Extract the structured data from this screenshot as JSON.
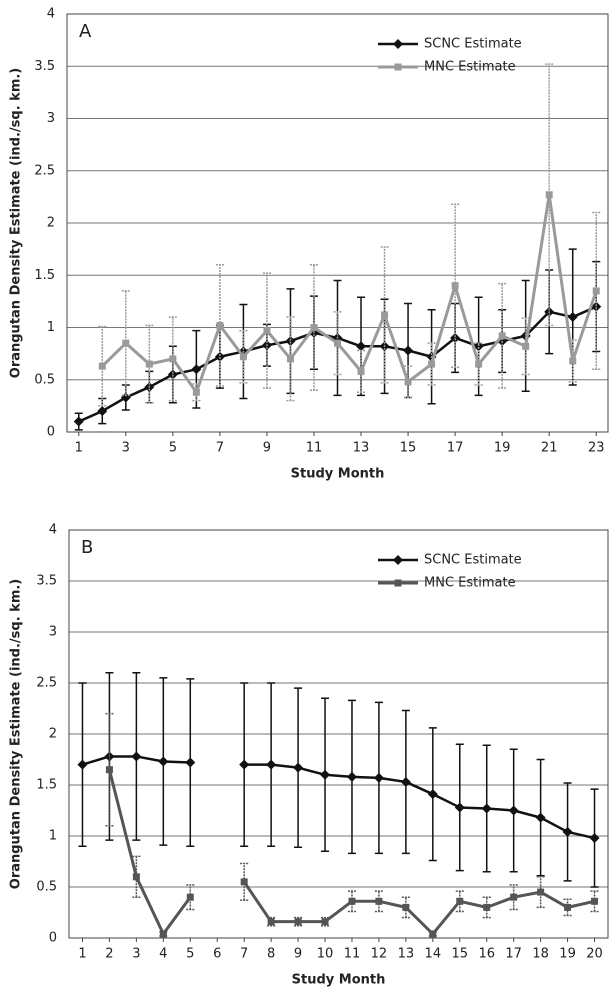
{
  "chart_data": [
    {
      "type": "line",
      "panel_label": "A",
      "xlabel": "Study Month",
      "ylabel": "Orangutan Density Estimate (ind./sq. km.)",
      "x": [
        1,
        2,
        3,
        4,
        5,
        6,
        7,
        8,
        9,
        10,
        11,
        12,
        13,
        14,
        15,
        16,
        17,
        18,
        19,
        20,
        21,
        22,
        23
      ],
      "xlim": [
        0.5,
        23.5
      ],
      "xticks": [
        1,
        3,
        5,
        7,
        9,
        11,
        13,
        15,
        17,
        19,
        21,
        23
      ],
      "ylim": [
        0,
        4
      ],
      "yticks": [
        0,
        0.5,
        1,
        1.5,
        2,
        2.5,
        3,
        3.5,
        4
      ],
      "grid": true,
      "legend": "upper right",
      "series": [
        {
          "name": "SCNC Estimate",
          "color": "#111111",
          "marker": "diamond",
          "values": [
            0.1,
            0.2,
            0.33,
            0.43,
            0.55,
            0.6,
            0.72,
            0.77,
            0.83,
            0.87,
            0.95,
            0.9,
            0.82,
            0.82,
            0.78,
            0.72,
            0.9,
            0.82,
            0.87,
            0.92,
            1.15,
            1.1,
            1.2
          ],
          "errors": [
            0.08,
            0.12,
            0.12,
            0.15,
            0.27,
            0.37,
            0.3,
            0.45,
            0.2,
            0.5,
            0.35,
            0.55,
            0.47,
            0.45,
            0.45,
            0.45,
            0.33,
            0.47,
            0.3,
            0.53,
            0.4,
            0.65,
            0.43
          ]
        },
        {
          "name": "MNC Estimate",
          "color": "#9a9a9a",
          "marker": "square",
          "values": [
            null,
            0.63,
            0.85,
            0.65,
            0.7,
            0.38,
            1.02,
            0.72,
            0.97,
            0.7,
            1.0,
            0.85,
            0.58,
            1.12,
            0.48,
            0.65,
            1.4,
            0.65,
            0.92,
            0.82,
            2.27,
            0.68,
            1.35
          ],
          "errors": [
            null,
            0.38,
            0.5,
            0.37,
            0.4,
            0.08,
            0.58,
            0.25,
            0.55,
            0.4,
            0.6,
            0.3,
            0.2,
            0.65,
            0.15,
            0.2,
            0.78,
            0.2,
            0.5,
            0.27,
            1.25,
            0.2,
            0.75
          ]
        }
      ]
    },
    {
      "type": "line",
      "panel_label": "B",
      "xlabel": "Study Month",
      "ylabel": "Orangutan Density Estimate (ind./sq. km.)",
      "x": [
        1,
        2,
        3,
        4,
        5,
        6,
        7,
        8,
        9,
        10,
        11,
        12,
        13,
        14,
        15,
        16,
        17,
        18,
        19,
        20
      ],
      "xlim": [
        0.5,
        20.5
      ],
      "xticks": [
        1,
        2,
        3,
        4,
        5,
        6,
        7,
        8,
        9,
        10,
        11,
        12,
        13,
        14,
        15,
        16,
        17,
        18,
        19,
        20
      ],
      "ylim": [
        0,
        4
      ],
      "yticks": [
        0,
        0.5,
        1,
        1.5,
        2,
        2.5,
        3,
        3.5,
        4
      ],
      "grid": true,
      "legend": "upper right",
      "series": [
        {
          "name": "SCNC Estimate",
          "color": "#111111",
          "marker": "diamond",
          "values": [
            1.7,
            1.78,
            1.78,
            1.73,
            1.72,
            null,
            1.7,
            1.7,
            1.67,
            1.6,
            1.58,
            1.57,
            1.53,
            1.41,
            1.28,
            1.27,
            1.25,
            1.18,
            1.04,
            0.98
          ],
          "errors": [
            0.8,
            0.82,
            0.82,
            0.82,
            0.82,
            null,
            0.8,
            0.8,
            0.78,
            0.75,
            0.75,
            0.74,
            0.7,
            0.65,
            0.62,
            0.62,
            0.6,
            0.57,
            0.48,
            0.48
          ]
        },
        {
          "name": "MNC Estimate",
          "color": "#555555",
          "marker": "square",
          "values": [
            null,
            1.65,
            0.6,
            0.04,
            0.4,
            null,
            0.55,
            0.16,
            0.16,
            0.16,
            0.36,
            0.36,
            0.3,
            0.04,
            0.36,
            0.3,
            0.4,
            0.45,
            0.3,
            0.36
          ],
          "errors": [
            null,
            0.55,
            0.2,
            0.02,
            0.12,
            null,
            0.18,
            0.04,
            0.04,
            0.04,
            0.1,
            0.1,
            0.1,
            0.02,
            0.1,
            0.1,
            0.12,
            0.15,
            0.08,
            0.1
          ]
        }
      ]
    }
  ]
}
